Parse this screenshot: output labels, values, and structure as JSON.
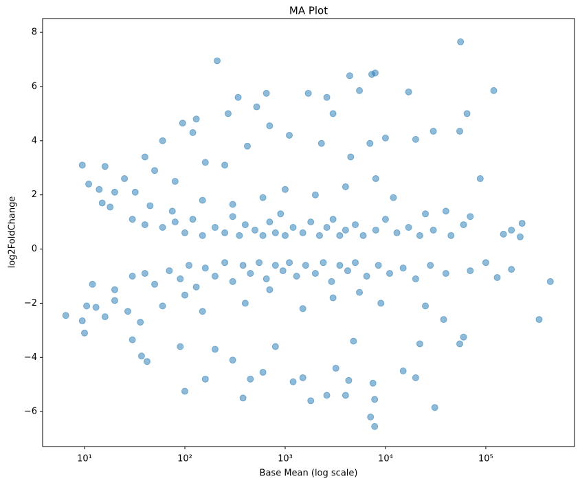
{
  "chart_data": {
    "type": "scatter",
    "title": "MA Plot",
    "x_label": "Base Mean (log scale)",
    "y_label": "log2FoldChange",
    "xscale": "log",
    "color": "#1f77b4",
    "opacity": 0.5,
    "xlim": [
      3.82,
      766000
    ],
    "ylim": [
      -7.29,
      8.51
    ],
    "xticks": [
      {
        "value": 10,
        "label": "10¹"
      },
      {
        "value": 100,
        "label": "10²"
      },
      {
        "value": 1000,
        "label": "10³"
      },
      {
        "value": 10000,
        "label": "10⁴"
      },
      {
        "value": 100000,
        "label": "10⁵"
      }
    ],
    "yticks": [
      {
        "value": -6,
        "label": "−6"
      },
      {
        "value": -4,
        "label": "−4"
      },
      {
        "value": -2,
        "label": "−2"
      },
      0,
      2,
      4,
      6,
      8
    ],
    "x": [
      9.5,
      11,
      16,
      14,
      6.5,
      9.5,
      10,
      10.5,
      13,
      16,
      37,
      42,
      100,
      160,
      210,
      60,
      95,
      120,
      130,
      270,
      340,
      520,
      650,
      1700,
      2600,
      3000,
      4400,
      5500,
      7300,
      7900,
      56000,
      17000,
      120000,
      65000,
      88000,
      230000,
      440000,
      340000,
      220000,
      150000,
      130000,
      100000,
      380,
      600,
      1200,
      1800,
      2600,
      4000,
      7100,
      7800,
      7800,
      31000,
      20000,
      15000,
      7500,
      4300,
      1500,
      450,
      60000,
      55000,
      38000,
      22000,
      3200,
      800,
      300,
      200,
      90,
      30,
      27,
      36,
      4800,
      55000,
      30000,
      20000,
      10000,
      7000,
      4500,
      2300,
      1100,
      700,
      420,
      250,
      160,
      80,
      50,
      40,
      25,
      20,
      32,
      45,
      18,
      15,
      30,
      75,
      150,
      300,
      600,
      1000,
      2000,
      4000,
      8000,
      12000,
      25000,
      40000,
      70000,
      180000,
      40,
      60,
      80,
      100,
      120,
      150,
      200,
      250,
      300,
      350,
      400,
      500,
      600,
      700,
      800,
      900,
      1000,
      1200,
      1500,
      1800,
      2200,
      2600,
      3000,
      3500,
      4000,
      5000,
      6000,
      8000,
      10000,
      13000,
      17000,
      22000,
      30000,
      45000,
      60000,
      12,
      20,
      30,
      40,
      50,
      70,
      90,
      110,
      130,
      160,
      200,
      250,
      300,
      380,
      450,
      550,
      650,
      800,
      950,
      1100,
      1300,
      1600,
      2000,
      2400,
      2900,
      3500,
      4200,
      5000,
      6500,
      8500,
      11000,
      15000,
      20000,
      28000,
      40000,
      70000,
      180000,
      20,
      60,
      150,
      400,
      1500,
      3000,
      9000,
      25000,
      100,
      700,
      5500
    ],
    "values": [
      3.1,
      2.4,
      3.05,
      2.2,
      -2.45,
      -2.65,
      -3.1,
      -2.1,
      -2.15,
      -2.5,
      -3.95,
      -4.15,
      -5.25,
      -4.8,
      6.95,
      4.0,
      4.65,
      4.3,
      4.8,
      5.0,
      5.6,
      5.25,
      5.75,
      5.75,
      5.6,
      5.0,
      6.4,
      5.85,
      6.45,
      6.5,
      7.65,
      5.8,
      5.85,
      5.0,
      2.6,
      0.95,
      -1.2,
      -2.6,
      0.45,
      0.55,
      -1.05,
      -0.5,
      -5.5,
      -4.55,
      -4.9,
      -5.6,
      -5.4,
      -5.4,
      -6.2,
      -6.55,
      -5.55,
      -5.85,
      -4.75,
      -4.5,
      -4.95,
      -4.85,
      -4.75,
      -4.8,
      -3.25,
      -3.5,
      -2.6,
      -3.5,
      -4.4,
      -3.6,
      -4.1,
      -3.7,
      -3.6,
      -3.35,
      -2.3,
      -2.7,
      -3.4,
      4.35,
      4.35,
      4.05,
      4.1,
      3.9,
      3.4,
      3.9,
      4.2,
      4.55,
      3.8,
      3.1,
      3.2,
      2.5,
      2.9,
      3.4,
      2.6,
      2.1,
      2.1,
      1.6,
      1.55,
      1.7,
      1.1,
      1.4,
      1.8,
      1.65,
      1.9,
      2.2,
      2.0,
      2.3,
      2.6,
      1.9,
      1.3,
      1.4,
      1.2,
      0.7,
      0.9,
      0.8,
      1.0,
      0.6,
      1.1,
      0.5,
      0.8,
      0.6,
      1.2,
      0.5,
      0.9,
      0.7,
      0.5,
      1.0,
      0.6,
      1.3,
      0.5,
      0.8,
      0.6,
      1.0,
      0.5,
      0.8,
      1.1,
      0.5,
      0.7,
      0.9,
      0.5,
      0.7,
      1.1,
      0.6,
      0.8,
      0.5,
      0.7,
      0.5,
      0.9,
      -1.3,
      -1.5,
      -1.0,
      -0.9,
      -1.3,
      -0.8,
      -1.1,
      -0.6,
      -1.4,
      -0.7,
      -1.0,
      -0.5,
      -1.2,
      -0.6,
      -0.9,
      -0.5,
      -1.1,
      -0.6,
      -0.8,
      -0.5,
      -1.0,
      -0.6,
      -0.9,
      -0.5,
      -1.2,
      -0.6,
      -0.8,
      -0.5,
      -1.0,
      -0.6,
      -0.9,
      -0.7,
      -1.1,
      -0.6,
      -0.9,
      -0.8,
      -0.75,
      -1.9,
      -2.1,
      -2.3,
      -2.0,
      -2.2,
      -1.8,
      -2.0,
      -2.1,
      -1.7,
      -1.5,
      -1.6
    ]
  }
}
